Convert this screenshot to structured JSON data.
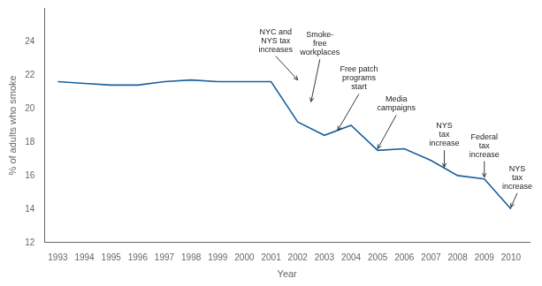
{
  "chart_data": {
    "type": "line",
    "xlabel": "Year",
    "ylabel": "% of adults who smoke",
    "x": [
      1993,
      1994,
      1995,
      1996,
      1997,
      1998,
      1999,
      2000,
      2001,
      2002,
      2003,
      2004,
      2005,
      2006,
      2007,
      2008,
      2009,
      2010
    ],
    "values": [
      21.6,
      21.5,
      21.4,
      21.4,
      21.6,
      21.7,
      21.6,
      21.6,
      21.6,
      19.2,
      18.4,
      19.0,
      17.5,
      17.6,
      16.9,
      16.0,
      15.8,
      14.0
    ],
    "color": "#1a5f9e",
    "xlim": [
      1992.5,
      2010.7
    ],
    "ylim": [
      12,
      26
    ],
    "xticks": [
      1993,
      1994,
      1995,
      1996,
      1997,
      1998,
      1999,
      2000,
      2001,
      2002,
      2003,
      2004,
      2005,
      2006,
      2007,
      2008,
      2009,
      2010
    ],
    "yticks": [
      12,
      14,
      16,
      18,
      20,
      22,
      24
    ],
    "grid": false,
    "annotations": [
      {
        "text": "NYC and\nNYS tax\nincreases",
        "x": 2002,
        "y": 21.6
      },
      {
        "text": "Smoke-\nfree\nworkplaces",
        "x": 2002.5,
        "y": 20.3
      },
      {
        "text": "Free patch\nprograms\nstart",
        "x": 2003.5,
        "y": 18.6
      },
      {
        "text": "Media\ncampaigns",
        "x": 2005.0,
        "y": 17.5
      },
      {
        "text": "NYS\ntax\nincrease",
        "x": 2007.5,
        "y": 16.4
      },
      {
        "text": "Federal\ntax\nincrease",
        "x": 2009.0,
        "y": 15.8
      },
      {
        "text": "NYS\ntax\nincrease",
        "x": 2010.0,
        "y": 14.0
      }
    ]
  }
}
